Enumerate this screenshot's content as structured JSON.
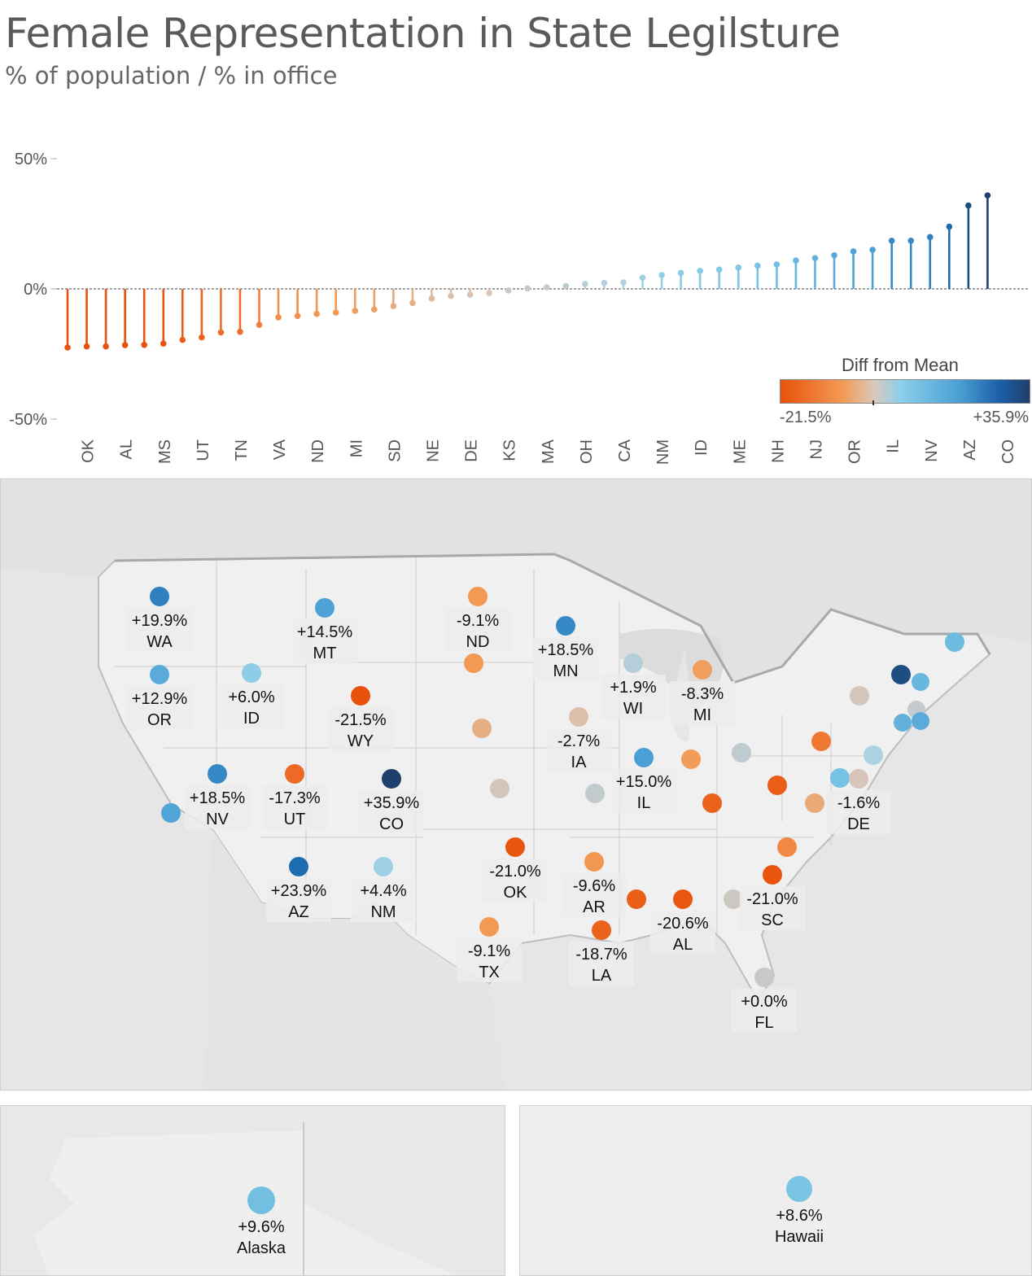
{
  "title": "Female Representation in State Legilsture",
  "subtitle": "% of population / % in office",
  "colors": {
    "neg": "#e8520c",
    "mid": "#d2c8c0",
    "pos_light": "#7ec8e6",
    "pos_dark": "#1f3f6c"
  },
  "legend": {
    "title": "Diff from Mean",
    "min_label": "-21.5%",
    "max_label": "+35.9%"
  },
  "chart_data": [
    {
      "type": "lollipop",
      "yticks": [
        "50%",
        "0%",
        "-50%"
      ],
      "ylim": [
        -50,
        50
      ],
      "x_labels_shown": [
        "OK",
        "AL",
        "MS",
        "UT",
        "TN",
        "VA",
        "ND",
        "MI",
        "SD",
        "NE",
        "DE",
        "KS",
        "MA",
        "OH",
        "CA",
        "NM",
        "ID",
        "ME",
        "NH",
        "NJ",
        "OR",
        "IL",
        "NV",
        "AZ",
        "CO"
      ],
      "values": [
        -22.5,
        -22.1,
        -22.1,
        -21.6,
        -21.5,
        -21.0,
        -19.6,
        -18.6,
        -16.7,
        -16.5,
        -13.8,
        -10.9,
        -10.4,
        -9.6,
        -9.1,
        -8.4,
        -7.9,
        -6.6,
        -5.4,
        -3.7,
        -2.7,
        -2.2,
        -1.6,
        -0.6,
        0.2,
        0.6,
        1.1,
        1.9,
        2.3,
        2.5,
        4.3,
        5.3,
        6.1,
        6.9,
        7.4,
        8.2,
        8.9,
        9.4,
        10.9,
        11.8,
        12.9,
        14.4,
        15.0,
        18.5,
        18.5,
        19.9,
        23.9,
        32.0,
        35.9
      ]
    },
    {
      "type": "symbol-map",
      "labeled": [
        {
          "code": "WA",
          "value": "+19.9%"
        },
        {
          "code": "OR",
          "value": "+12.9%"
        },
        {
          "code": "ID",
          "value": "+6.0%"
        },
        {
          "code": "MT",
          "value": "+14.5%"
        },
        {
          "code": "WY",
          "value": "-21.5%"
        },
        {
          "code": "NV",
          "value": "+18.5%"
        },
        {
          "code": "UT",
          "value": "-17.3%"
        },
        {
          "code": "CO",
          "value": "+35.9%"
        },
        {
          "code": "AZ",
          "value": "+23.9%"
        },
        {
          "code": "NM",
          "value": "+4.4%"
        },
        {
          "code": "ND",
          "value": "-9.1%"
        },
        {
          "code": "MN",
          "value": "+18.5%"
        },
        {
          "code": "WI",
          "value": "+1.9%"
        },
        {
          "code": "MI",
          "value": "-8.3%"
        },
        {
          "code": "IA",
          "value": "-2.7%"
        },
        {
          "code": "IL",
          "value": "+15.0%"
        },
        {
          "code": "OK",
          "value": "-21.0%"
        },
        {
          "code": "TX",
          "value": "-9.1%"
        },
        {
          "code": "AR",
          "value": "-9.6%"
        },
        {
          "code": "LA",
          "value": "-18.7%"
        },
        {
          "code": "AL",
          "value": "-20.6%"
        },
        {
          "code": "SC",
          "value": "-21.0%"
        },
        {
          "code": "FL",
          "value": "+0.0%"
        },
        {
          "code": "DE",
          "value": "-1.6%"
        }
      ],
      "unlabeled_values": [
        -1.2,
        -9.1,
        -5.6,
        0.8,
        0.6,
        -8.6,
        -18.8,
        -19.6,
        -14.8,
        -6.4,
        2.9,
        9.1,
        32.0,
        10.9,
        0.6,
        11.9,
        12.9,
        10.2,
        14.1,
        -11.9,
        -19.4
      ]
    }
  ],
  "insets": [
    {
      "name": "Alaska",
      "value": "+9.6%",
      "num": 9.6
    },
    {
      "name": "Hawaii",
      "value": "+8.6%",
      "num": 8.6
    }
  ]
}
